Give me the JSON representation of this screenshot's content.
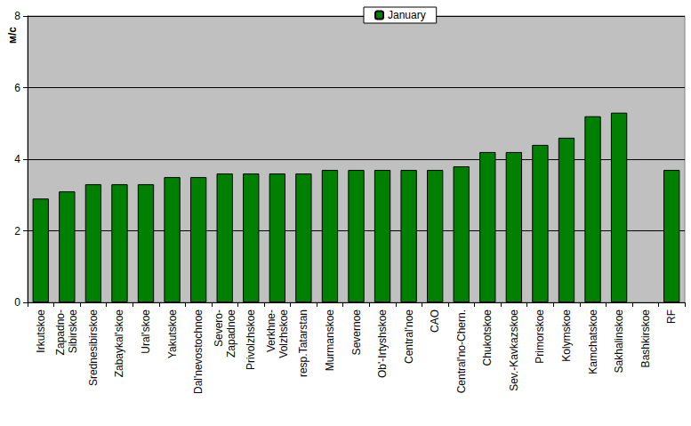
{
  "chart_data": {
    "type": "bar",
    "y_label": "м/с",
    "categories": [
      "Irkutskoe",
      "Zapadno-\nSibirskoe",
      "Srednesibirskoe",
      "Zabaykal'skoe",
      "Ural'skoe",
      "Yakutskoe",
      "Dal'nevostochnoe",
      "Severo-\nZapadnoe",
      "Privolzhskoe",
      "Verkhne-\nVolzhskoe",
      "resp.Tatarstan",
      "Murmanskoe",
      "Severnoe",
      "Ob'-Irtyshskoe",
      "Central'noe",
      "CAO",
      "Central'no-Chern.",
      "Chukotskoe",
      "Sev.-Kavkazskoe",
      "Primorskoe",
      "Kolymskoe",
      "Kamchatskoe",
      "Sakhalinskoe",
      "Bashkirskoe",
      "RF"
    ],
    "series": [
      {
        "name": "January",
        "color": "#008000",
        "values": [
          2.9,
          3.1,
          3.3,
          3.3,
          3.3,
          3.5,
          3.5,
          3.6,
          3.6,
          3.6,
          3.6,
          3.7,
          3.7,
          3.7,
          3.7,
          3.7,
          3.8,
          4.2,
          4.2,
          4.4,
          4.6,
          5.2,
          5.3,
          null,
          3.7
        ]
      }
    ],
    "ylim": [
      0,
      8
    ],
    "yticks": [
      0,
      2,
      4,
      6,
      8
    ],
    "grid": true,
    "legend": "top"
  }
}
